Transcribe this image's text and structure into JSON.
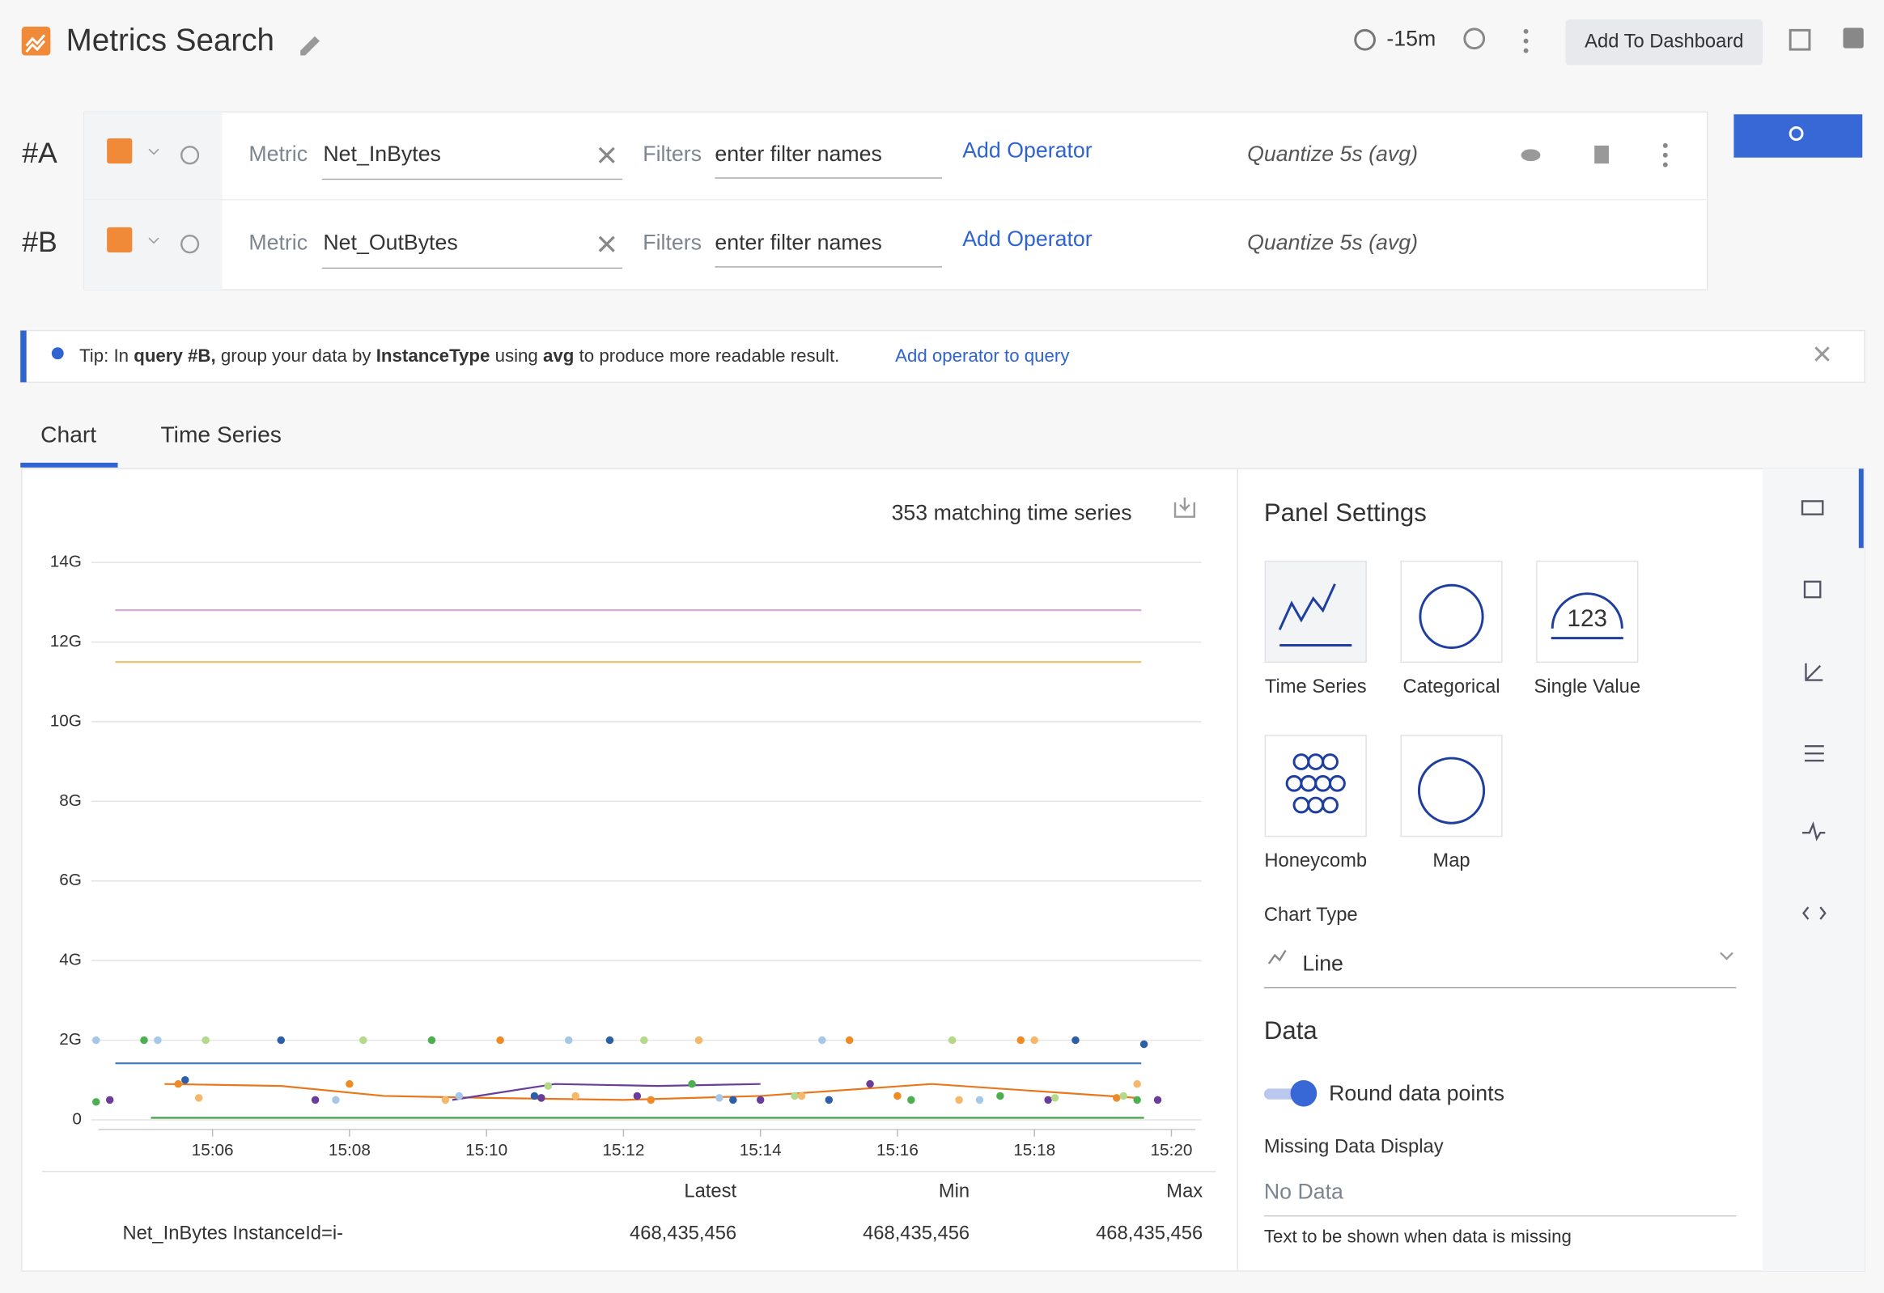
{
  "header": {
    "title": "Metrics Search",
    "time_range": "-15m",
    "add_button": "Add To Dashboard"
  },
  "queries": [
    {
      "id": "#A",
      "metric_label": "Metric",
      "metric": "Net_InBytes",
      "filters_label": "Filters",
      "filters_placeholder": "enter filter names",
      "add_operator": "Add Operator",
      "quantize": "Quantize 5s (avg)"
    },
    {
      "id": "#B",
      "metric_label": "Metric",
      "metric": "Net_OutBytes",
      "filters_label": "Filters",
      "filters_placeholder": "enter filter names",
      "add_operator": "Add Operator",
      "quantize": "Quantize 5s (avg)"
    }
  ],
  "tip": {
    "prefix": "Tip: In",
    "query": "query #B,",
    "mid1": "group your data by",
    "group": "InstanceType",
    "mid2": "using",
    "agg": "avg",
    "suffix": "to produce more readable result.",
    "link": "Add operator to query"
  },
  "tabs": [
    "Chart",
    "Time Series"
  ],
  "chart": {
    "type": "line",
    "summary": "353 matching time series",
    "ylim": [
      0,
      14
    ],
    "yticks": [
      0,
      {
        "value": 2,
        "label": "2G"
      },
      {
        "value": 4,
        "label": "4G"
      },
      {
        "value": 6,
        "label": "6G"
      },
      {
        "value": 8,
        "label": "8G"
      },
      {
        "value": 10,
        "label": "10G"
      },
      {
        "value": 12,
        "label": "12G"
      },
      {
        "value": 14,
        "label": "14G"
      }
    ],
    "xlim": [
      4.23,
      20.44
    ],
    "xticks": [
      {
        "value": 6,
        "label": "15:06"
      },
      {
        "value": 8,
        "label": "15:08"
      },
      {
        "value": 10,
        "label": "15:10"
      },
      {
        "value": 12,
        "label": "15:12"
      },
      {
        "value": 14,
        "label": "15:14"
      },
      {
        "value": 16,
        "label": "15:16"
      },
      {
        "value": 18,
        "label": "15:18"
      },
      {
        "value": 20,
        "label": "15:20"
      }
    ],
    "grid": true,
    "series": [
      {
        "mode": "lines",
        "color": "#d9a6d9",
        "x": [
          4.58,
          19.56
        ],
        "values": [
          12.8,
          12.8
        ]
      },
      {
        "mode": "lines",
        "color": "#f0c070",
        "x": [
          4.58,
          19.56
        ],
        "values": [
          11.5,
          11.5
        ]
      },
      {
        "mode": "lines",
        "color": "#3f7fc8",
        "x": [
          4.58,
          19.56
        ],
        "values": [
          1.42,
          1.42
        ]
      },
      {
        "mode": "lines",
        "color": "#43a047",
        "x": [
          5.1,
          19.6
        ],
        "values": [
          0.05,
          0.05
        ]
      },
      {
        "mode": "lines",
        "color": "#e8781e",
        "x": [
          5.3,
          7.0,
          8.5,
          10.0,
          12.0,
          14.0,
          16.5,
          19.5
        ],
        "values": [
          0.9,
          0.85,
          0.6,
          0.55,
          0.5,
          0.6,
          0.9,
          0.55
        ]
      },
      {
        "mode": "lines",
        "color": "#6a3d9a",
        "x": [
          9.5,
          11.0,
          12.5,
          14.0
        ],
        "values": [
          0.5,
          0.9,
          0.85,
          0.9
        ]
      },
      {
        "mode": "markers",
        "color": "#4caf50",
        "x": [
          4.3,
          5.0,
          9.2,
          10.8,
          13.0,
          16.2,
          17.5,
          19.5
        ],
        "values": [
          0.45,
          2.0,
          2.0,
          0.55,
          0.9,
          0.5,
          0.6,
          0.5
        ]
      },
      {
        "mode": "markers",
        "color": "#f08a24",
        "x": [
          5.5,
          8.0,
          10.2,
          12.4,
          15.3,
          16.0,
          17.8,
          19.2
        ],
        "values": [
          0.9,
          0.9,
          2.0,
          0.5,
          2.0,
          0.6,
          2.0,
          0.55
        ]
      },
      {
        "mode": "markers",
        "color": "#6a3d9a",
        "x": [
          4.5,
          7.5,
          10.8,
          12.2,
          14.0,
          15.6,
          18.2,
          19.8
        ],
        "values": [
          0.5,
          0.5,
          0.55,
          0.6,
          0.5,
          0.9,
          0.5,
          0.5
        ]
      },
      {
        "mode": "markers",
        "color": "#a6c8e8",
        "x": [
          4.3,
          5.2,
          7.8,
          9.6,
          11.2,
          13.4,
          14.9,
          17.2
        ],
        "values": [
          2.0,
          2.0,
          0.5,
          0.6,
          2.0,
          0.55,
          2.0,
          0.5
        ]
      },
      {
        "mode": "markers",
        "color": "#2c5fa8",
        "x": [
          5.6,
          7.0,
          10.7,
          11.8,
          13.6,
          15.0,
          18.6,
          19.6
        ],
        "values": [
          1.0,
          2.0,
          0.6,
          2.0,
          0.5,
          0.5,
          2.0,
          1.9
        ]
      },
      {
        "mode": "markers",
        "color": "#b5d98a",
        "x": [
          5.9,
          8.2,
          10.9,
          12.3,
          14.5,
          16.8,
          18.3,
          19.3
        ],
        "values": [
          2.0,
          2.0,
          0.85,
          2.0,
          0.6,
          2.0,
          0.55,
          0.6
        ]
      },
      {
        "mode": "markers",
        "color": "#f5b86a",
        "x": [
          5.8,
          9.4,
          11.3,
          13.1,
          14.6,
          16.9,
          18.0,
          19.5
        ],
        "values": [
          0.55,
          0.5,
          0.6,
          2.0,
          0.6,
          0.5,
          2.0,
          0.9
        ]
      }
    ],
    "table": {
      "headers": [
        "Latest",
        "Min",
        "Max"
      ],
      "rows": [
        [
          "Net_InBytes InstanceId=i-",
          "468,435,456",
          "468,435,456",
          "468,435,456"
        ]
      ]
    }
  },
  "panel": {
    "title": "Panel Settings",
    "chart_options": [
      "Time Series",
      "Categorical",
      "Single Value",
      "Honeycomb",
      "Map"
    ],
    "single_value_sample": "123",
    "chart_type_label": "Chart Type",
    "chart_type": "Line",
    "data_title": "Data",
    "round_label": "Round data points",
    "missing_label": "Missing Data Display",
    "missing_placeholder": "No Data",
    "missing_help": "Text to be shown when data is missing"
  }
}
